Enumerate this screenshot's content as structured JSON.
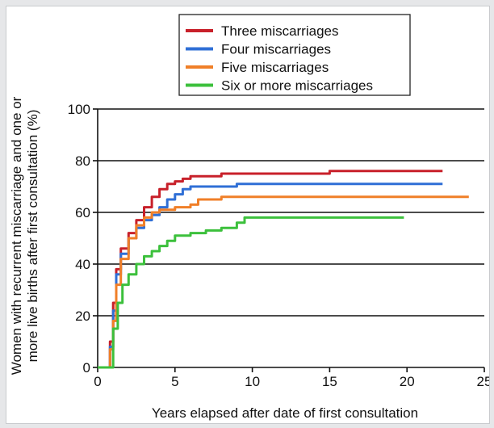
{
  "chart_data": {
    "type": "line",
    "title": "",
    "xlabel": "Years elapsed after date of first consultation",
    "ylabel": [
      "Women with recurrent miscarriage and one or",
      "more live births after first consultation (%)"
    ],
    "xlim": [
      0,
      25
    ],
    "ylim": [
      0,
      100
    ],
    "x_ticks": [
      0,
      5,
      10,
      15,
      20,
      25
    ],
    "y_ticks": [
      0,
      20,
      40,
      60,
      80,
      100
    ],
    "grid": "horizontal",
    "legend_position": "top-center",
    "series": [
      {
        "name": "Three miscarriages",
        "color": "#c8202a",
        "x": [
          0,
          0.5,
          0.8,
          1.0,
          1.2,
          1.5,
          2.0,
          2.5,
          3.0,
          3.5,
          4.0,
          4.5,
          5.0,
          5.5,
          6.0,
          7.0,
          8.0,
          10.0,
          12.0,
          15.0,
          20.0,
          22.3
        ],
        "y": [
          0,
          0,
          10,
          25,
          38,
          46,
          52,
          57,
          62,
          66,
          69,
          71,
          72,
          73,
          74,
          74,
          75,
          75,
          75,
          76,
          76,
          76
        ]
      },
      {
        "name": "Four miscarriages",
        "color": "#2f6fd6",
        "x": [
          0,
          0.5,
          0.8,
          1.0,
          1.2,
          1.5,
          2.0,
          2.5,
          3.0,
          3.5,
          4.0,
          4.5,
          5.0,
          5.5,
          6.0,
          7.0,
          8.0,
          9.0,
          12.0,
          15.0,
          20.0,
          22.3
        ],
        "y": [
          0,
          0,
          8,
          22,
          36,
          44,
          50,
          54,
          57,
          59,
          62,
          65,
          67,
          69,
          70,
          70,
          70,
          71,
          71,
          71,
          71,
          71
        ]
      },
      {
        "name": "Five miscarriages",
        "color": "#f07f28",
        "x": [
          0,
          0.5,
          0.8,
          1.0,
          1.2,
          1.5,
          2.0,
          2.5,
          3.0,
          3.5,
          4.0,
          5.0,
          6.0,
          6.5,
          8.0,
          10.0,
          15.0,
          20.0,
          24.0
        ],
        "y": [
          0,
          0,
          7,
          18,
          32,
          42,
          50,
          55,
          58,
          60,
          61,
          62,
          63,
          65,
          66,
          66,
          66,
          66,
          66
        ]
      },
      {
        "name": "Six or more miscarriages",
        "color": "#3cc03c",
        "x": [
          0,
          0.6,
          1.0,
          1.3,
          1.6,
          2.0,
          2.5,
          3.0,
          3.5,
          4.0,
          4.5,
          5.0,
          6.0,
          7.0,
          8.0,
          9.0,
          9.5,
          12.0,
          15.0,
          19.8
        ],
        "y": [
          0,
          0,
          15,
          25,
          32,
          36,
          40,
          43,
          45,
          47,
          49,
          51,
          52,
          53,
          54,
          56,
          58,
          58,
          58,
          58
        ]
      }
    ]
  }
}
